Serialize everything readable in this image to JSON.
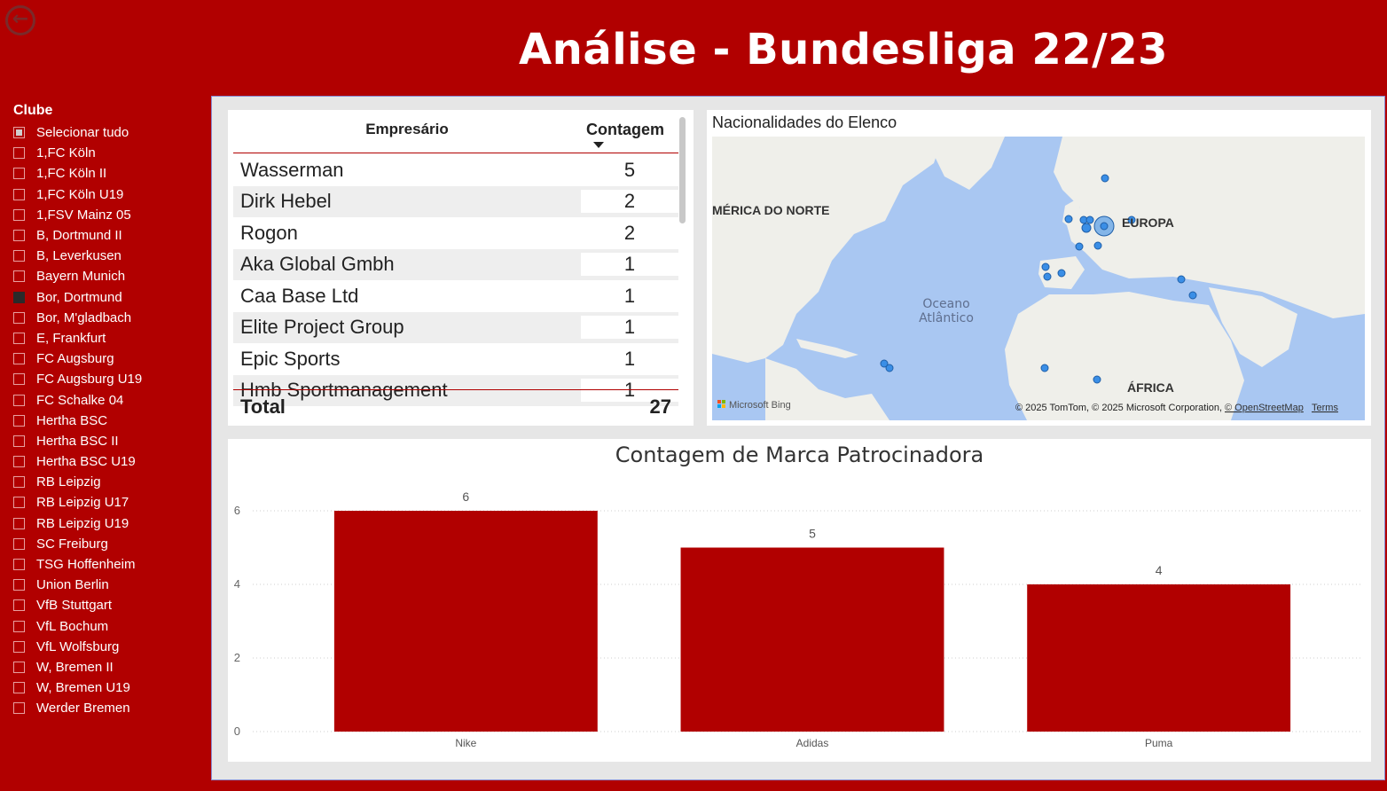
{
  "page": {
    "title": "Análise - Bundesliga 22/23"
  },
  "back_button": {
    "icon": "arrow-left-circle-icon"
  },
  "slicer": {
    "title": "Clube",
    "items": [
      {
        "label": "Selecionar tudo",
        "state": "partial"
      },
      {
        "label": "1,FC Köln",
        "state": "off"
      },
      {
        "label": "1,FC Köln II",
        "state": "off"
      },
      {
        "label": "1,FC Köln U19",
        "state": "off"
      },
      {
        "label": "1,FSV Mainz 05",
        "state": "off"
      },
      {
        "label": "B, Dortmund II",
        "state": "off"
      },
      {
        "label": "B, Leverkusen",
        "state": "off"
      },
      {
        "label": "Bayern Munich",
        "state": "off"
      },
      {
        "label": "Bor, Dortmund",
        "state": "on"
      },
      {
        "label": "Bor, M'gladbach",
        "state": "off"
      },
      {
        "label": "E, Frankfurt",
        "state": "off"
      },
      {
        "label": "FC Augsburg",
        "state": "off"
      },
      {
        "label": "FC Augsburg U19",
        "state": "off"
      },
      {
        "label": "FC Schalke 04",
        "state": "off"
      },
      {
        "label": "Hertha BSC",
        "state": "off"
      },
      {
        "label": "Hertha BSC II",
        "state": "off"
      },
      {
        "label": "Hertha BSC U19",
        "state": "off"
      },
      {
        "label": "RB Leipzig",
        "state": "off"
      },
      {
        "label": "RB Leipzig U17",
        "state": "off"
      },
      {
        "label": "RB Leipzig U19",
        "state": "off"
      },
      {
        "label": "SC Freiburg",
        "state": "off"
      },
      {
        "label": "TSG Hoffenheim",
        "state": "off"
      },
      {
        "label": "Union Berlin",
        "state": "off"
      },
      {
        "label": "VfB Stuttgart",
        "state": "off"
      },
      {
        "label": "VfL Bochum",
        "state": "off"
      },
      {
        "label": "VfL Wolfsburg",
        "state": "off"
      },
      {
        "label": "W, Bremen II",
        "state": "off"
      },
      {
        "label": "W, Bremen U19",
        "state": "off"
      },
      {
        "label": "Werder Bremen",
        "state": "off"
      }
    ]
  },
  "agent_table": {
    "col_agent": "Empresário",
    "col_count": "Contagem",
    "rows": [
      {
        "name": "Wasserman",
        "count": "5"
      },
      {
        "name": "Dirk Hebel",
        "count": "2"
      },
      {
        "name": "Rogon",
        "count": "2"
      },
      {
        "name": "Aka Global Gmbh",
        "count": "1"
      },
      {
        "name": "Caa Base Ltd",
        "count": "1"
      },
      {
        "name": "Elite Project Group",
        "count": "1"
      },
      {
        "name": "Epic Sports",
        "count": "1"
      },
      {
        "name": "Hmb Sportmanagement",
        "count": "1"
      }
    ],
    "total_label": "Total",
    "total_value": "27"
  },
  "map": {
    "title": "Nacionalidades do Elenco",
    "label_north_america": "MÉRICA DO NORTE",
    "label_europe": "EUROPA",
    "label_ocean_1": "Oceano",
    "label_ocean_2": "Atlântico",
    "label_africa": "ÁFRICA",
    "bing_logo": "Microsoft Bing",
    "attribution": "© 2025 TomTom, © 2025 Microsoft Corporation,",
    "osm_link": "© OpenStreetMap",
    "terms_link": "Terms",
    "bubble_color": "#3a8ee6"
  },
  "chart_data": {
    "type": "bar",
    "title": "Contagem de Marca Patrocinadora",
    "categories": [
      "Nike",
      "Adidas",
      "Puma"
    ],
    "values": [
      6,
      5,
      4
    ],
    "yticks": [
      0,
      2,
      4,
      6
    ],
    "ylim": [
      0,
      6
    ],
    "xlabel": "",
    "ylabel": "",
    "grid": true,
    "bar_color": "#b10000"
  }
}
